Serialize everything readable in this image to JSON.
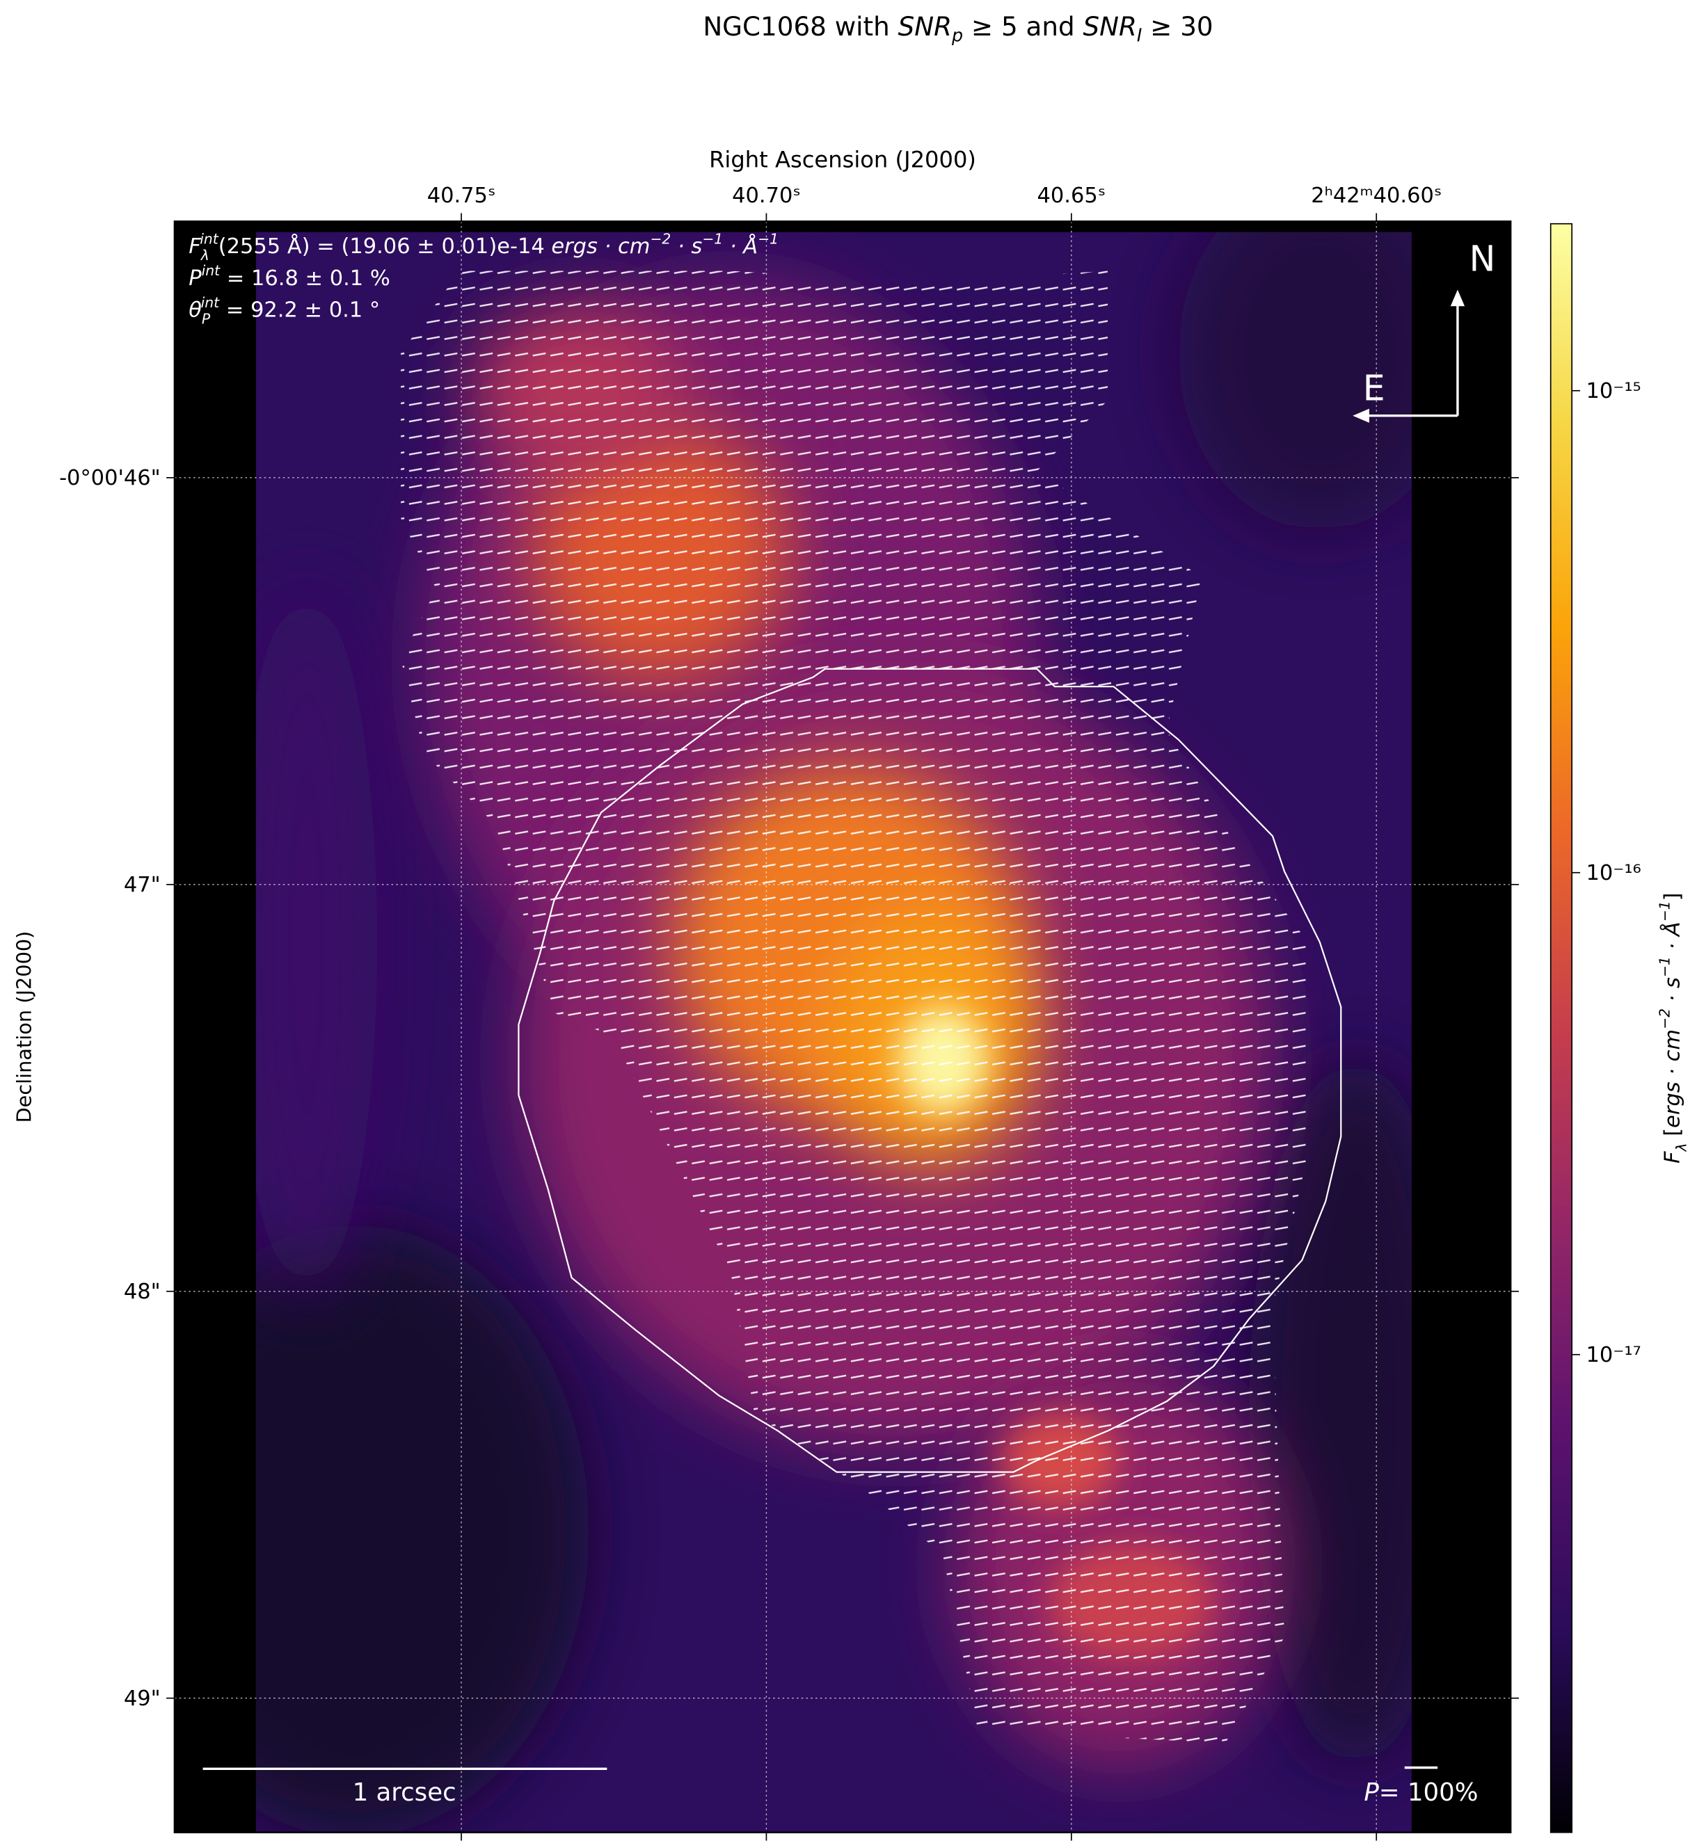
{
  "chart_data": {
    "type": "image",
    "title": [
      "NGC1068 with ",
      "SNR",
      "p",
      " ≥  5 and ",
      "SNR",
      "I",
      " ≥  30"
    ],
    "xlabel": "Right Ascension (J2000)",
    "ylabel": "Declination (J2000)",
    "xlim": [
      40.797,
      40.578
    ],
    "ylim": [
      45.37,
      49.33
    ],
    "xticks": [
      {
        "value": 40.75,
        "label": "40.75ˢ"
      },
      {
        "value": 40.7,
        "label": "40.70ˢ"
      },
      {
        "value": 40.65,
        "label": "40.65ˢ"
      },
      {
        "value": 40.6,
        "label": "2ʰ42ᵐ40.60ˢ"
      }
    ],
    "yticks": [
      {
        "value": 46,
        "label": "-0°00'46\""
      },
      {
        "value": 47,
        "label": "47\""
      },
      {
        "value": 48,
        "label": "48\""
      },
      {
        "value": 49,
        "label": "49\""
      }
    ],
    "grid": true,
    "colorbar": {
      "label": [
        "F",
        "λ",
        " [",
        "ergs · cm",
        "−2",
        " · s",
        "−1",
        " · Å",
        "−1",
        "]"
      ],
      "log": true,
      "colormap": [
        "#000004",
        "#2a0b5a",
        "#5c126e",
        "#932667",
        "#c73e4c",
        "#ec6928",
        "#fba40a",
        "#f6d645",
        "#fcffa4"
      ],
      "lim": [
        1.02e-18,
        2.22e-15
      ],
      "ticks": [
        {
          "value": 1e-15,
          "label": "10⁻¹⁵"
        },
        {
          "value": 1e-16,
          "label": "10⁻¹⁶"
        },
        {
          "value": 1e-17,
          "label": "10⁻¹⁷"
        }
      ]
    },
    "annotations": {
      "flux": [
        "F",
        "λ",
        "int",
        "(2555 Å) = (19.06 ± 0.01)e-14 ",
        "ergs · cm",
        "−2",
        " · s",
        "−1",
        " · Å",
        "−1"
      ],
      "polarization": [
        "P",
        "int",
        " = 16.8 ± 0.1 %"
      ],
      "angle": [
        "θ",
        "P",
        "int",
        " = 92.2 ± 0.1 °"
      ],
      "north": "N",
      "east": "E",
      "scale_bar": "1 arcsec",
      "vector_scale": [
        "P",
        "= 100%"
      ]
    }
  }
}
